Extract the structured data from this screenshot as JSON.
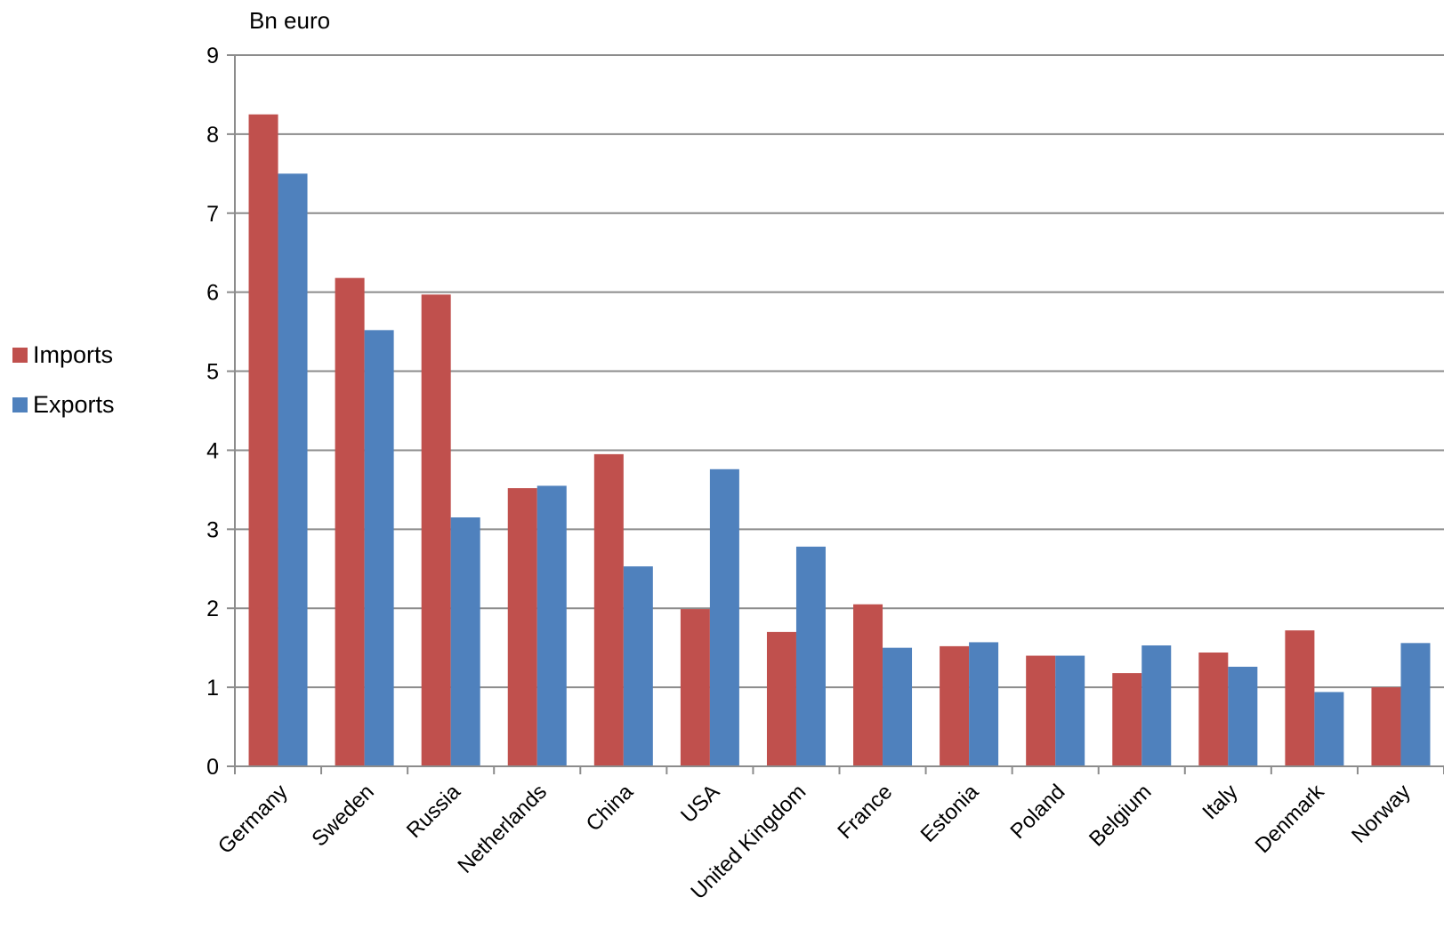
{
  "chart_data": {
    "type": "bar",
    "title": "",
    "unit_label": "Bn euro",
    "xlabel": "",
    "ylabel": "",
    "ylim": [
      0,
      9
    ],
    "yticks": [
      0,
      1,
      2,
      3,
      4,
      5,
      6,
      7,
      8,
      9
    ],
    "grid": "horizontal",
    "legend_position": "left",
    "categories": [
      "Germany",
      "Sweden",
      "Russia",
      "Netherlands",
      "China",
      "USA",
      "United Kingdom",
      "France",
      "Estonia",
      "Poland",
      "Belgium",
      "Italy",
      "Denmark",
      "Norway"
    ],
    "series": [
      {
        "name": "Imports",
        "color": "#C0504D",
        "values": [
          8.25,
          6.18,
          5.97,
          3.52,
          3.95,
          1.99,
          1.7,
          2.05,
          1.52,
          1.4,
          1.18,
          1.44,
          1.72,
          1.0
        ]
      },
      {
        "name": "Exports",
        "color": "#4F81BD",
        "values": [
          7.5,
          5.52,
          3.15,
          3.55,
          2.53,
          3.76,
          2.78,
          1.5,
          1.57,
          1.4,
          1.53,
          1.26,
          0.94,
          1.56
        ]
      }
    ]
  }
}
